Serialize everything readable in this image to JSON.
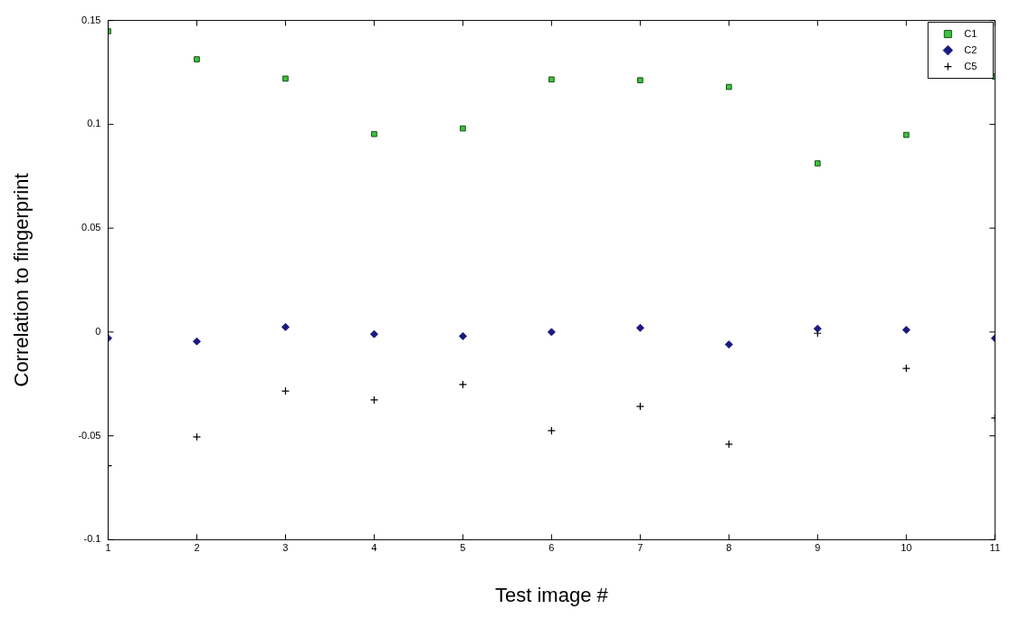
{
  "chart_data": {
    "type": "scatter",
    "xlabel": "Test image #",
    "ylabel": "Correlation to fingerprint",
    "x": [
      1,
      2,
      3,
      4,
      5,
      6,
      7,
      8,
      9,
      10,
      11
    ],
    "series": [
      {
        "name": "C1",
        "color": "#3cc43c",
        "marker": "square",
        "values": [
          0.1448,
          0.1313,
          0.122,
          0.0953,
          0.098,
          0.1216,
          0.1212,
          0.118,
          0.0812,
          0.0949,
          0.123
        ]
      },
      {
        "name": "C2",
        "color": "#1a1a80",
        "marker": "diamond",
        "values": [
          -0.003,
          -0.0045,
          0.0024,
          -0.001,
          -0.002,
          0,
          0.002,
          -0.006,
          0.0016,
          0.001,
          -0.003
        ]
      },
      {
        "name": "C5",
        "color": "#000000",
        "marker": "cross",
        "values": [
          -0.0644,
          -0.0505,
          -0.0284,
          -0.0327,
          -0.0253,
          -0.0475,
          -0.0358,
          -0.054,
          -0.0006,
          -0.0175,
          -0.0414
        ]
      }
    ],
    "xlim": [
      1,
      11
    ],
    "xticks": [
      1,
      2,
      3,
      4,
      5,
      6,
      7,
      8,
      9,
      10,
      11
    ],
    "ylim": [
      -0.1,
      0.15
    ],
    "yticks": [
      -0.1,
      -0.05,
      0,
      0.05,
      0.1,
      0.15
    ],
    "grid": false,
    "legend": "top right"
  }
}
